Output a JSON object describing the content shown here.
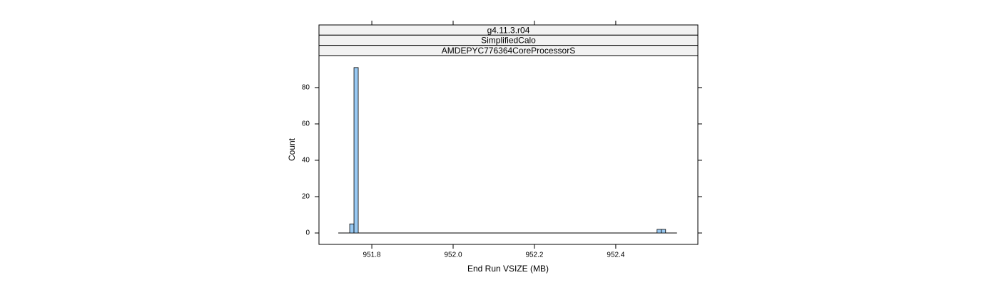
{
  "chart_data": {
    "type": "histogram",
    "strips": [
      "g4.11.3.r04",
      "SimplifiedCalo",
      "AMDEPYC776364CoreProcessorS"
    ],
    "x_label": "End Run VSIZE (MB)",
    "y_label": "Count",
    "color": "#99c9f2",
    "strip_color": "#f2f2f2",
    "bins": [
      951.7456,
      951.7561,
      951.7666,
      951.7771,
      951.7876,
      951.7981,
      951.8086,
      951.8191,
      951.8296,
      951.8401,
      951.8506,
      951.8611,
      951.8716,
      951.8821,
      951.8926,
      951.9031,
      951.9136,
      951.9241,
      951.9346,
      951.9451,
      951.9556,
      951.9661,
      951.9766,
      951.9871,
      951.9976,
      952.0081,
      952.0186,
      952.0291,
      952.0396,
      952.0501,
      952.0606,
      952.0711,
      952.0816,
      952.0921,
      952.1026,
      952.1131,
      952.1236,
      952.1341,
      952.1446,
      952.1551,
      952.1656,
      952.1761,
      952.1866,
      952.1971,
      952.2076,
      952.2181,
      952.2286,
      952.2391,
      952.2496,
      952.2601,
      952.2706,
      952.2811,
      952.2916,
      952.3021,
      952.3126,
      952.3231,
      952.3336,
      952.3441,
      952.3546,
      952.3651,
      952.3756,
      952.3861,
      952.3966,
      952.4071,
      952.4176,
      952.4281,
      952.4386,
      952.4491,
      952.4596,
      952.4701,
      952.4806,
      952.4911,
      952.5016,
      952.5121,
      952.5226
    ],
    "values": [
      5,
      91,
      0,
      0,
      0,
      0,
      0,
      0,
      0,
      0,
      0,
      0,
      0,
      0,
      0,
      0,
      0,
      0,
      0,
      0,
      0,
      0,
      0,
      0,
      0,
      0,
      0,
      0,
      0,
      0,
      0,
      0,
      0,
      0,
      0,
      0,
      0,
      0,
      0,
      0,
      0,
      0,
      0,
      0,
      0,
      0,
      0,
      0,
      0,
      0,
      0,
      0,
      0,
      0,
      0,
      0,
      0,
      0,
      0,
      0,
      0,
      0,
      0,
      0,
      0,
      0,
      0,
      0,
      0,
      0,
      0,
      0,
      2,
      2
    ],
    "xlim": [
      951.67,
      952.602
    ],
    "xticks": [
      951.8,
      {
        "value": 952,
        "label": "952.0"
      },
      952.2,
      952.4
    ],
    "ylim": [
      -6.27,
      97.6
    ],
    "yticks": [
      0,
      20,
      40,
      60,
      80
    ]
  }
}
